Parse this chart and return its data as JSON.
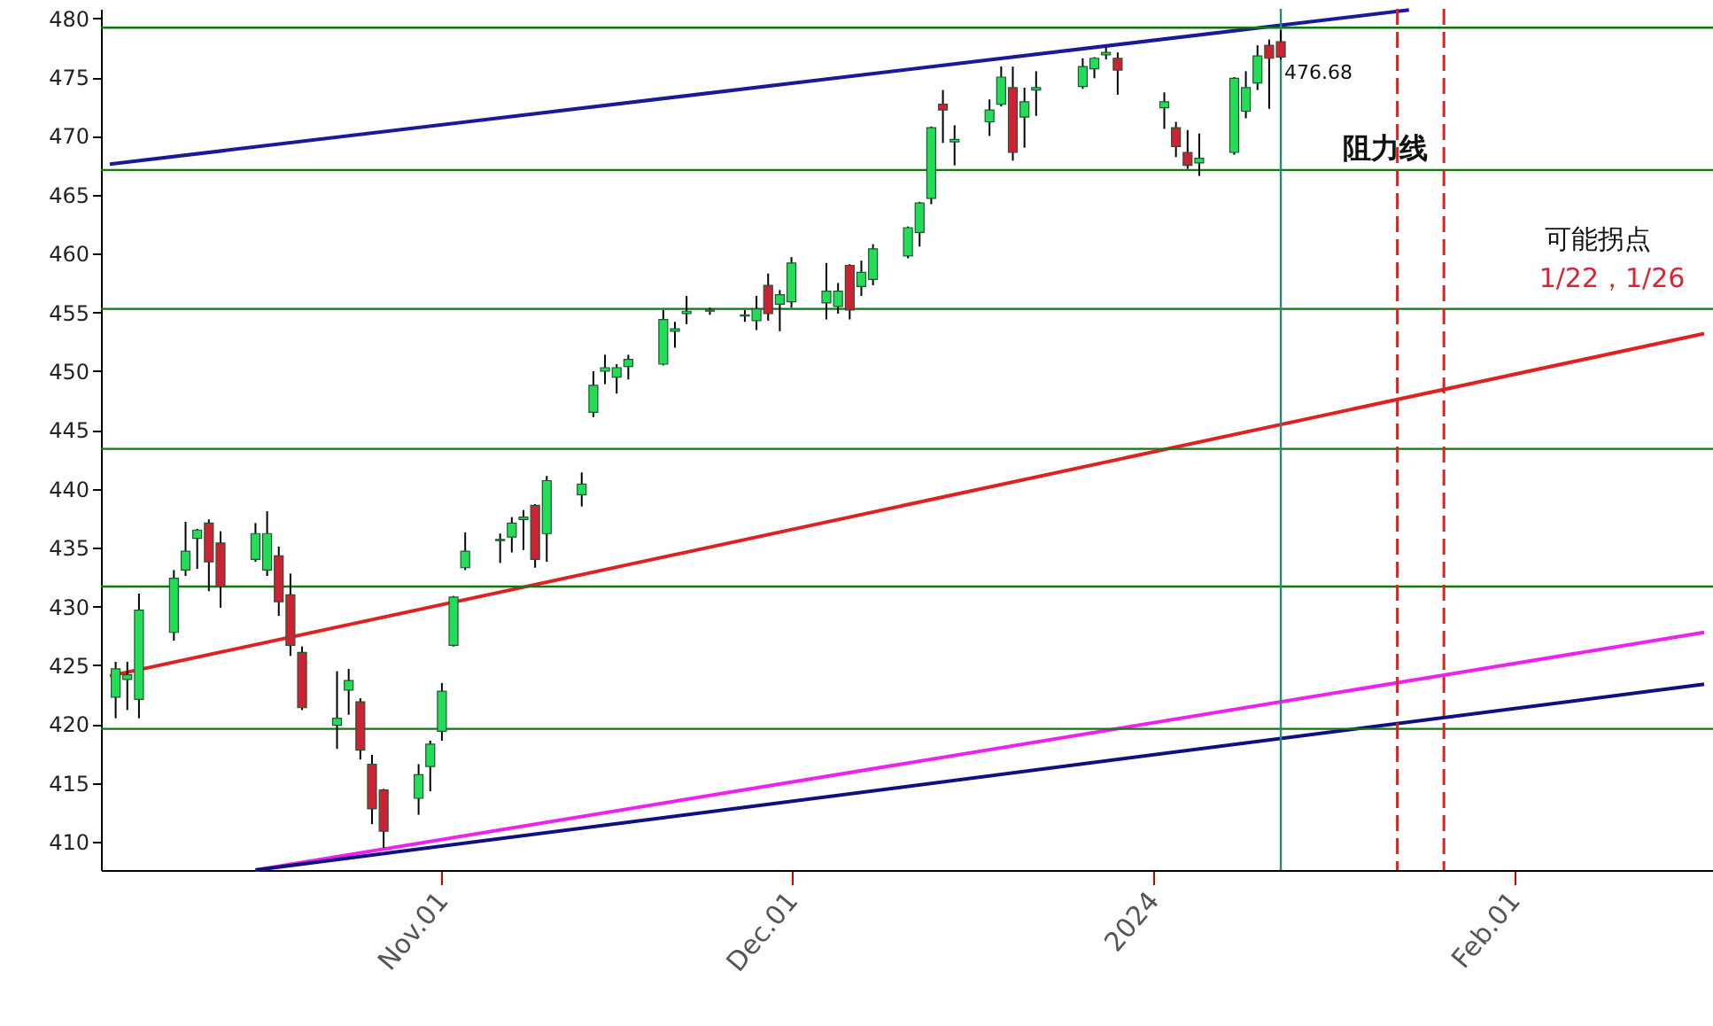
{
  "chart_data": {
    "type": "candlestick",
    "x": [
      "2023-10-04",
      "2023-10-05",
      "2023-10-06",
      "2023-10-09",
      "2023-10-10",
      "2023-10-11",
      "2023-10-12",
      "2023-10-13",
      "2023-10-16",
      "2023-10-17",
      "2023-10-18",
      "2023-10-19",
      "2023-10-20",
      "2023-10-23",
      "2023-10-24",
      "2023-10-25",
      "2023-10-26",
      "2023-10-27",
      "2023-10-30",
      "2023-10-31",
      "2023-11-01",
      "2023-11-02",
      "2023-11-03",
      "2023-11-06",
      "2023-11-07",
      "2023-11-08",
      "2023-11-09",
      "2023-11-10",
      "2023-11-13",
      "2023-11-14",
      "2023-11-15",
      "2023-11-16",
      "2023-11-17",
      "2023-11-20",
      "2023-11-21",
      "2023-11-22",
      "2023-11-24",
      "2023-11-27",
      "2023-11-28",
      "2023-11-29",
      "2023-11-30",
      "2023-12-01",
      "2023-12-04",
      "2023-12-05",
      "2023-12-06",
      "2023-12-07",
      "2023-12-08",
      "2023-12-11",
      "2023-12-12",
      "2023-12-13",
      "2023-12-14",
      "2023-12-15",
      "2023-12-18",
      "2023-12-19",
      "2023-12-20",
      "2023-12-21",
      "2023-12-22",
      "2023-12-26",
      "2023-12-27",
      "2023-12-28",
      "2023-12-29",
      "2024-01-02",
      "2024-01-03",
      "2024-01-04",
      "2024-01-05",
      "2024-01-08",
      "2024-01-09",
      "2024-01-10",
      "2024-01-11",
      "2024-01-12"
    ],
    "ohlc": [
      [
        422.3,
        425.3,
        420.5,
        424.7
      ],
      [
        423.8,
        425.3,
        421.2,
        424.2
      ],
      [
        422.1,
        431.1,
        420.5,
        429.7
      ],
      [
        427.8,
        433.1,
        427.1,
        432.4
      ],
      [
        433.1,
        437.2,
        432.6,
        434.7
      ],
      [
        435.8,
        436.6,
        433.2,
        436.5
      ],
      [
        437.1,
        437.4,
        431.3,
        433.8
      ],
      [
        435.4,
        436.4,
        429.9,
        431.7
      ],
      [
        434.0,
        437.1,
        433.8,
        436.2
      ],
      [
        433.1,
        438.1,
        432.6,
        436.2
      ],
      [
        434.3,
        435.1,
        429.2,
        430.4
      ],
      [
        431.0,
        432.8,
        425.8,
        426.7
      ],
      [
        426.1,
        426.6,
        421.2,
        421.4
      ],
      [
        419.9,
        424.5,
        417.9,
        420.5
      ],
      [
        422.9,
        424.7,
        420.8,
        423.7
      ],
      [
        421.9,
        422.2,
        417.0,
        417.8
      ],
      [
        416.6,
        417.4,
        411.5,
        412.8
      ],
      [
        414.4,
        414.5,
        409.5,
        410.9
      ],
      [
        413.7,
        416.6,
        412.3,
        415.7
      ],
      [
        416.4,
        418.6,
        414.3,
        418.3
      ],
      [
        419.4,
        423.5,
        418.6,
        422.8
      ],
      [
        426.7,
        430.9,
        426.6,
        430.8
      ],
      [
        433.3,
        436.3,
        433.1,
        434.7
      ],
      [
        435.6,
        436.2,
        433.7,
        435.7
      ],
      [
        435.9,
        437.6,
        434.6,
        437.1
      ],
      [
        437.4,
        438.2,
        434.8,
        437.6
      ],
      [
        438.6,
        438.7,
        433.3,
        434.0
      ],
      [
        436.2,
        441.1,
        433.8,
        440.7
      ],
      [
        439.5,
        441.4,
        438.5,
        440.4
      ],
      [
        446.5,
        450.0,
        446.1,
        448.8
      ],
      [
        450.0,
        451.4,
        448.9,
        450.3
      ],
      [
        449.5,
        450.6,
        448.1,
        450.3
      ],
      [
        450.4,
        451.4,
        449.3,
        451.0
      ],
      [
        450.6,
        455.2,
        450.5,
        454.4
      ],
      [
        453.4,
        454.2,
        452.0,
        453.6
      ],
      [
        454.9,
        456.4,
        454.0,
        455.1
      ],
      [
        455.1,
        455.4,
        454.8,
        455.2
      ],
      [
        454.7,
        455.2,
        454.2,
        454.8
      ],
      [
        454.3,
        456.4,
        453.5,
        455.3
      ],
      [
        457.3,
        458.3,
        454.3,
        454.9
      ],
      [
        455.7,
        456.9,
        453.4,
        456.5
      ],
      [
        455.9,
        459.7,
        455.4,
        459.2
      ],
      [
        455.8,
        459.2,
        454.4,
        456.8
      ],
      [
        455.5,
        457.5,
        454.9,
        456.8
      ],
      [
        459.0,
        459.1,
        454.4,
        455.2
      ],
      [
        457.2,
        459.4,
        456.4,
        458.4
      ],
      [
        457.8,
        460.8,
        457.3,
        460.4
      ],
      [
        459.8,
        462.3,
        459.6,
        462.2
      ],
      [
        461.8,
        464.4,
        460.6,
        464.3
      ],
      [
        464.7,
        470.8,
        464.2,
        470.7
      ],
      [
        472.7,
        473.9,
        469.4,
        472.2
      ],
      [
        469.5,
        470.9,
        467.5,
        469.7
      ],
      [
        471.2,
        473.1,
        470.0,
        472.2
      ],
      [
        472.7,
        475.9,
        472.5,
        475.0
      ],
      [
        474.1,
        475.9,
        467.9,
        468.6
      ],
      [
        471.6,
        474.1,
        469.0,
        472.9
      ],
      [
        473.9,
        475.5,
        471.7,
        474.1
      ],
      [
        474.2,
        476.6,
        474.0,
        475.9
      ],
      [
        475.7,
        476.7,
        474.9,
        476.6
      ],
      [
        476.9,
        477.5,
        476.5,
        477.1
      ],
      [
        476.6,
        477.1,
        473.5,
        475.6
      ],
      [
        472.4,
        473.7,
        470.6,
        472.9
      ],
      [
        470.7,
        471.2,
        468.2,
        469.1
      ],
      [
        468.6,
        470.5,
        467.2,
        467.5
      ],
      [
        467.7,
        470.2,
        466.6,
        468.1
      ],
      [
        468.6,
        475.0,
        468.4,
        474.9
      ],
      [
        472.1,
        475.5,
        471.5,
        474.1
      ],
      [
        474.5,
        477.7,
        473.9,
        476.8
      ],
      [
        477.7,
        478.2,
        472.3,
        476.6
      ],
      [
        478.0,
        479.0,
        476.5,
        476.7
      ]
    ],
    "colors": [
      "#22dd55",
      "#22dd55",
      "#22dd55",
      "#22dd55",
      "#22dd55",
      "#22dd55",
      "#cc2233",
      "#cc2233",
      "#22dd55",
      "#22dd55",
      "#cc2233",
      "#cc2233",
      "#cc2233",
      "#22dd55",
      "#22dd55",
      "#cc2233",
      "#cc2233",
      "#cc2233",
      "#22dd55",
      "#22dd55",
      "#22dd55",
      "#22dd55",
      "#22dd55",
      "#22dd55",
      "#22dd55",
      "#22dd55",
      "#cc2233",
      "#22dd55",
      "#22dd55",
      "#22dd55",
      "#22dd55",
      "#22dd55",
      "#22dd55",
      "#22dd55",
      "#22dd55",
      "#22dd55",
      "#22dd55",
      "#22dd55",
      "#22dd55",
      "#cc2233",
      "#22dd55",
      "#22dd55",
      "#22dd55",
      "#22dd55",
      "#cc2233",
      "#22dd55",
      "#22dd55",
      "#22dd55",
      "#22dd55",
      "#22dd55",
      "#cc2233",
      "#22dd55",
      "#22dd55",
      "#22dd55",
      "#cc2233",
      "#22dd55",
      "#22dd55",
      "#22dd55",
      "#22dd55",
      "#22dd55",
      "#cc2233",
      "#22dd55",
      "#cc2233",
      "#cc2233",
      "#22dd55",
      "#22dd55",
      "#22dd55",
      "#22dd55",
      "#cc2233",
      "#cc2233"
    ],
    "series": [
      {
        "type": "line",
        "color": "#1a1a99",
        "x": [
          "2023-10-03T12:00",
          "2024-01-23"
        ],
        "values": [
          467.6,
          480.7
        ]
      },
      {
        "type": "line",
        "color": "#dd2222",
        "x": [
          "2023-10-03T12:00",
          "2024-02-17T08:00"
        ],
        "values": [
          424.1,
          453.2
        ]
      },
      {
        "type": "line",
        "color": "#ee22ee",
        "x": [
          "2023-10-16",
          "2024-02-17T08:00"
        ],
        "values": [
          407.6,
          427.8
        ]
      },
      {
        "type": "line",
        "color": "#101080",
        "x": [
          "2023-10-16",
          "2024-02-17T08:00"
        ],
        "values": [
          407.6,
          423.4
        ]
      }
    ],
    "ref_lines": [
      {
        "axis": "y",
        "value": 479.2,
        "color": "#117711"
      },
      {
        "axis": "y",
        "value": 467.1,
        "color": "#117711"
      },
      {
        "axis": "y",
        "value": 455.3,
        "color": "#117711"
      },
      {
        "axis": "y",
        "value": 443.4,
        "color": "#117711"
      },
      {
        "axis": "y",
        "value": 431.7,
        "color": "#117711"
      },
      {
        "axis": "y",
        "value": 419.6,
        "color": "#117711"
      },
      {
        "axis": "x",
        "value": "2024-01-12",
        "color": "#2a8a7a"
      },
      {
        "axis": "x",
        "value": "2024-01-22",
        "color": "#dd2222",
        "line_style": "dashed"
      },
      {
        "axis": "x",
        "value": "2024-01-26",
        "color": "#dd2222",
        "line_style": "dashed"
      }
    ],
    "annotations": [
      {
        "text": "476.68",
        "x": "2024-01-12",
        "y": 476.68
      },
      "阻力线",
      "可能拐点",
      "1/22，1/26"
    ],
    "xlim": [
      "2023-10-03T12:00",
      "2024-02-17T08:00"
    ],
    "xticks": [
      {
        "value": "2023-11-01",
        "label": "Nov.01"
      },
      {
        "value": "2023-12-01",
        "label": "Dec.01"
      },
      {
        "value": "2024-01-01",
        "label": "2024"
      },
      {
        "value": "2024-02-01",
        "label": "Feb.01"
      }
    ],
    "ylim": [
      407.6,
      480.8
    ],
    "yticks": [
      410,
      415,
      420,
      425,
      430,
      435,
      440,
      445,
      450,
      455,
      460,
      465,
      470,
      475,
      480
    ]
  }
}
